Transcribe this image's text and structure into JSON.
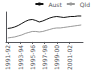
{
  "chart_data": {
    "type": "line",
    "x": [
      0,
      1,
      2,
      3,
      4,
      5,
      6,
      7,
      8,
      9,
      10,
      11,
      12,
      13,
      14,
      15,
      16,
      17,
      18,
      19,
      20,
      21
    ],
    "series": [
      {
        "name": "Aust",
        "color": "#111111",
        "values": [
          47,
          48,
          50,
          53,
          57,
          61,
          64,
          65,
          63,
          60,
          62,
          65,
          68,
          70,
          71,
          70,
          69,
          70,
          71,
          71,
          72,
          72
        ]
      },
      {
        "name": "Qld",
        "color": "#999999",
        "values": [
          28,
          29,
          30,
          32,
          34,
          37,
          39,
          41,
          41,
          40,
          41,
          43,
          45,
          47,
          48,
          48,
          49,
          50,
          51,
          52,
          53,
          54
        ]
      }
    ],
    "xlim": [
      -0.5,
      21.5
    ],
    "xticks": [
      {
        "value": 0,
        "label": "1991-92"
      },
      {
        "value": 3.5,
        "label": "1993-94"
      },
      {
        "value": 7,
        "label": "1995-96"
      },
      {
        "value": 10.5,
        "label": "1997-98"
      },
      {
        "value": 14,
        "label": "1999-00"
      },
      {
        "value": 17.5,
        "label": "2001-02"
      }
    ],
    "ylim": [
      20,
      80
    ],
    "tick_labels": "x",
    "grid": false,
    "legend": "upper right"
  }
}
